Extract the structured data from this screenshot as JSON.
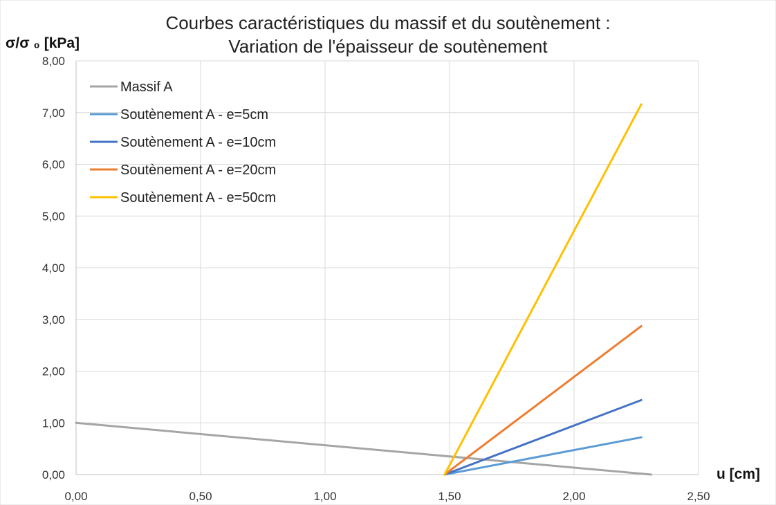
{
  "chart_data": {
    "type": "line",
    "title_line1": "Courbes caractéristiques du massif et du soutènement :",
    "title_line2": "Variation de l'épaisseur de soutènement",
    "ylabel": "σ/σ ₀ [kPa]",
    "xlabel": "u [cm]",
    "xlim": [
      0,
      2.5
    ],
    "ylim": [
      0,
      8
    ],
    "x_ticks": [
      "0,00",
      "0,50",
      "1,00",
      "1,50",
      "2,00",
      "2,50"
    ],
    "y_ticks": [
      "0,00",
      "1,00",
      "2,00",
      "3,00",
      "4,00",
      "5,00",
      "6,00",
      "7,00",
      "8,00"
    ],
    "grid": true,
    "legend_position": "top-left",
    "series": [
      {
        "name": "Massif A",
        "color": "#a5a5a5",
        "x": [
          0,
          2.31
        ],
        "y": [
          1.0,
          0.0
        ]
      },
      {
        "name": "Soutènement A - e=5cm",
        "color": "#5b9bd5",
        "x": [
          1.48,
          2.27
        ],
        "y": [
          0.0,
          0.72
        ]
      },
      {
        "name": "Soutènement A - e=10cm",
        "color": "#4472c4",
        "x": [
          1.48,
          2.27
        ],
        "y": [
          0.0,
          1.44
        ]
      },
      {
        "name": "Soutènement A - e=20cm",
        "color": "#ed7d31",
        "x": [
          1.48,
          2.27
        ],
        "y": [
          0.0,
          2.87
        ]
      },
      {
        "name": "Soutènement A - e=50cm",
        "color": "#ffc000",
        "x": [
          1.48,
          2.27
        ],
        "y": [
          0.0,
          7.16
        ]
      }
    ]
  }
}
